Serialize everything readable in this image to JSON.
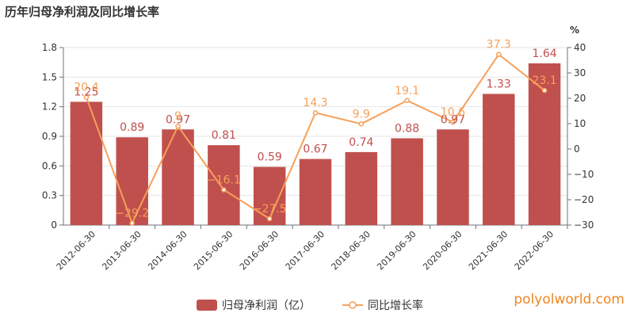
{
  "title": "历年归母净利润及同比增长率",
  "watermark": "polyolworld.com",
  "colors": {
    "bar": "#c0504d",
    "line": "#f5a05a",
    "axis": "#6e7079",
    "grid": "#e6e6e6"
  },
  "chart_data": {
    "type": "bar",
    "categories": [
      "2012-06-30",
      "2013-06-30",
      "2014-06-30",
      "2015-06-30",
      "2016-06-30",
      "2017-06-30",
      "2018-06-30",
      "2019-06-30",
      "2020-06-30",
      "2021-06-30",
      "2022-06-30"
    ],
    "series": [
      {
        "name": "归母净利润（亿）",
        "type": "bar",
        "axis": "left",
        "values": [
          1.25,
          0.89,
          0.97,
          0.81,
          0.59,
          0.67,
          0.74,
          0.88,
          0.97,
          1.33,
          1.64
        ],
        "labels": [
          "1.25",
          "0.89",
          "0.97",
          "0.81",
          "0.59",
          "0.67",
          "0.74",
          "0.88",
          "0.97",
          "1.33",
          "1.64"
        ]
      },
      {
        "name": "同比增长率",
        "type": "line",
        "axis": "right",
        "values": [
          20.4,
          -29.2,
          9,
          -16.1,
          -27.5,
          14.3,
          9.9,
          19.1,
          10.6,
          37.3,
          23.1
        ],
        "labels": [
          "20.4",
          "−29.2",
          "9",
          "−16.1",
          "−27.5",
          "14.3",
          "9.9",
          "19.1",
          "10.6",
          "37.3",
          "23.1"
        ]
      }
    ],
    "y_left": {
      "ylim": [
        0,
        1.8
      ],
      "ticks": [
        "0",
        "0.3",
        "0.6",
        "0.9",
        "1.2",
        "1.5",
        "1.8"
      ]
    },
    "y_right": {
      "ylim": [
        -30,
        40
      ],
      "ticks": [
        "−30",
        "−20",
        "−10",
        "0",
        "10",
        "20",
        "30",
        "40"
      ],
      "unit": "%"
    },
    "legend": "bottom",
    "grid": true
  }
}
